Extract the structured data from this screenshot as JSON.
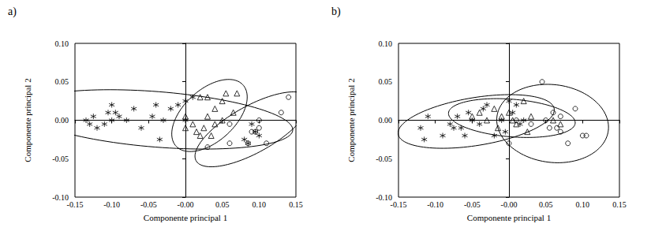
{
  "chart_data": [
    {
      "type": "scatter",
      "title": "a)",
      "x_label": "Componente principal 1",
      "y_label": "Componente principal 2",
      "xlim": [
        -0.15,
        0.15
      ],
      "ylim": [
        -0.1,
        0.1
      ],
      "xticks": [
        -0.15,
        {
          "value": -0.1,
          "label": "-0.10"
        },
        -0.05,
        {
          "value": 0,
          "label": "-0.00"
        },
        0.05,
        {
          "value": 0.1,
          "label": "0.10"
        },
        0.15
      ],
      "yticks": [
        {
          "value": -0.1,
          "label": "-0.10"
        },
        -0.05,
        {
          "value": 0,
          "label": "0.00"
        },
        0.05,
        {
          "value": 0.1,
          "label": "0.10"
        }
      ],
      "grid": false,
      "series": [
        {
          "marker": "asterisk",
          "color": "#000000",
          "x": [
            -0.135,
            -0.13,
            -0.125,
            -0.12,
            -0.11,
            -0.105,
            -0.1,
            -0.1,
            -0.095,
            -0.09,
            -0.08,
            -0.07,
            -0.06,
            -0.045,
            -0.04,
            -0.035,
            -0.03,
            -0.02,
            -0.01,
            0.0,
            0.01,
            0.0,
            0.09,
            0.095,
            0.1,
            0.085,
            0.08
          ],
          "values": [
            0.0,
            -0.005,
            0.005,
            -0.01,
            -0.005,
            0.01,
            0.02,
            0.0,
            0.01,
            0.005,
            0.0,
            0.015,
            -0.01,
            0.005,
            0.02,
            -0.025,
            0.0,
            0.015,
            0.02,
            0.025,
            0.03,
            0.0,
            -0.005,
            -0.015,
            -0.02,
            -0.03,
            -0.025
          ]
        },
        {
          "marker": "triangle",
          "color": "#000000",
          "x": [
            0.02,
            0.03,
            0.04,
            0.05,
            0.055,
            0.07,
            0.065,
            0.03,
            0.0,
            0.01,
            0.015,
            0.025,
            0.035,
            0.04,
            0.05,
            0.0,
            0.02
          ],
          "values": [
            0.03,
            0.03,
            0.015,
            0.025,
            0.035,
            0.035,
            0.01,
            0.005,
            0.005,
            -0.005,
            -0.015,
            -0.01,
            -0.02,
            -0.005,
            0.0,
            -0.01,
            -0.02
          ]
        },
        {
          "marker": "circle",
          "color": "#000000",
          "x": [
            0.03,
            0.06,
            0.085,
            0.09,
            0.095,
            0.1,
            0.11,
            0.13,
            0.14,
            0.06,
            0.1
          ],
          "values": [
            -0.035,
            -0.005,
            -0.03,
            -0.015,
            -0.015,
            -0.01,
            -0.03,
            0.01,
            0.03,
            -0.03,
            0.0
          ]
        }
      ]
    },
    {
      "type": "scatter",
      "title": "b)",
      "x_label": "Componente principal 1",
      "y_label": "Componente principal 2",
      "xlim": [
        -0.15,
        0.15
      ],
      "ylim": [
        -0.1,
        0.1
      ],
      "xticks": [
        -0.15,
        {
          "value": -0.1,
          "label": "-0.10"
        },
        -0.05,
        {
          "value": 0,
          "label": "-0.00"
        },
        0.05,
        {
          "value": 0.1,
          "label": "0.10"
        },
        0.15
      ],
      "yticks": [
        {
          "value": -0.1,
          "label": "-0.10"
        },
        -0.05,
        {
          "value": 0,
          "label": "0.00"
        },
        0.05,
        {
          "value": 0.1,
          "label": "0.10"
        }
      ],
      "grid": false,
      "series": [
        {
          "marker": "asterisk",
          "color": "#000000",
          "x": [
            -0.12,
            -0.115,
            -0.11,
            -0.09,
            -0.08,
            -0.075,
            -0.07,
            -0.065,
            -0.06,
            -0.055,
            -0.05,
            -0.04,
            -0.035,
            -0.03,
            -0.02,
            -0.01,
            0.0,
            0.005,
            0.01,
            0.015,
            -0.005,
            0.02
          ],
          "values": [
            -0.01,
            -0.025,
            0.005,
            -0.02,
            -0.005,
            -0.01,
            0.005,
            -0.01,
            -0.02,
            0.01,
            0.0,
            -0.005,
            0.015,
            0.02,
            -0.02,
            0.0,
            0.025,
            0.01,
            0.02,
            -0.005,
            -0.015,
            0.0
          ]
        },
        {
          "marker": "triangle",
          "color": "#000000",
          "x": [
            -0.05,
            -0.04,
            -0.03,
            -0.02,
            -0.015,
            -0.01,
            0.0,
            0.005,
            0.01,
            0.02,
            0.025,
            0.03,
            0.07,
            0.06
          ],
          "values": [
            0.005,
            0.01,
            0.0,
            0.015,
            -0.01,
            0.005,
            0.01,
            0.0,
            -0.005,
            0.025,
            -0.015,
            0.005,
            -0.005,
            0.0
          ]
        },
        {
          "marker": "circle",
          "color": "#000000",
          "x": [
            0.045,
            0.05,
            0.055,
            0.06,
            0.065,
            0.07,
            0.07,
            0.08,
            0.09,
            0.1,
            0.105,
            0.03,
            0.0,
            0.01
          ],
          "values": [
            0.05,
            0.0,
            -0.01,
            0.01,
            -0.01,
            -0.015,
            0.005,
            -0.03,
            0.015,
            -0.02,
            -0.02,
            -0.005,
            -0.03,
            0.0
          ]
        }
      ]
    }
  ]
}
